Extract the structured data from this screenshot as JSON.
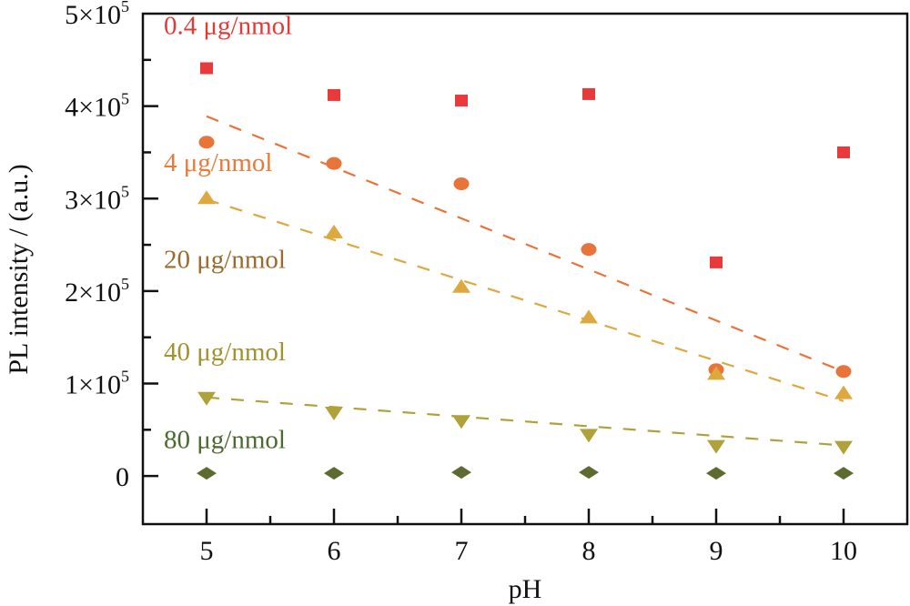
{
  "chart_data": {
    "type": "scatter",
    "title": "",
    "xlabel": "pH",
    "ylabel": "PL intensity / (a.u.)",
    "xlim": [
      4.5,
      10.5
    ],
    "ylim": [
      -0.52,
      5.0
    ],
    "y_unit_multiplier": 100000,
    "grid": false,
    "legend_placement": "inline-left",
    "x_ticks": [
      5,
      6,
      7,
      8,
      9,
      10
    ],
    "x_tick_labels": [
      "5",
      "6",
      "7",
      "8",
      "9",
      "10"
    ],
    "y_ticks": [
      0,
      1,
      2,
      3,
      4,
      5
    ],
    "y_tick_labels": [
      {
        "mant": "0",
        "exp": ""
      },
      {
        "mant": "1×10",
        "exp": "5"
      },
      {
        "mant": "2×10",
        "exp": "5"
      },
      {
        "mant": "3×10",
        "exp": "5"
      },
      {
        "mant": "4×10",
        "exp": "5"
      },
      {
        "mant": "5×10",
        "exp": "5"
      }
    ],
    "x": [
      5,
      6,
      7,
      8,
      9,
      10
    ],
    "series": [
      {
        "name": "0.4 μg/nmol",
        "label": "0.4 μg/nmol",
        "marker": "square",
        "color": "#E83A3A",
        "label_color": "#E23B36",
        "values": [
          4.41,
          4.12,
          4.06,
          4.13,
          2.31,
          3.5
        ],
        "fit_line": null
      },
      {
        "name": "4 μg/nmol",
        "label": "4 μg/nmol",
        "marker": "circle",
        "color": "#E8743A",
        "label_color": "#EA7A3A",
        "values": [
          3.61,
          3.38,
          3.16,
          2.45,
          1.15,
          1.13
        ],
        "fit_line": {
          "x": [
            5,
            10
          ],
          "y": [
            3.89,
            1.13
          ],
          "style": "dashed"
        }
      },
      {
        "name": "20 μg/nmol",
        "label": "20 μg/nmol",
        "marker": "triangle-up",
        "color": "#DDA83E",
        "label_color": "#9C6A2C",
        "values": [
          3.01,
          2.64,
          2.05,
          1.72,
          1.11,
          0.9
        ],
        "fit_line": {
          "x": [
            5,
            10
          ],
          "y": [
            2.99,
            0.81
          ],
          "style": "dashed"
        }
      },
      {
        "name": "40 μg/nmol",
        "label": "40 μg/nmol",
        "marker": "triangle-down",
        "color": "#B0A23A",
        "label_color": "#A0922E",
        "values": [
          0.84,
          0.68,
          0.59,
          0.44,
          0.32,
          0.31
        ],
        "fit_line": {
          "x": [
            5,
            10
          ],
          "y": [
            0.85,
            0.33
          ],
          "style": "dashed"
        }
      },
      {
        "name": "80 μg/nmol",
        "label": "80 μg/nmol",
        "marker": "diamond",
        "color": "#5E6B30",
        "label_color": "#4B6A2E",
        "values": [
          0.03,
          0.03,
          0.04,
          0.04,
          0.03,
          0.03
        ],
        "fit_line": null
      }
    ],
    "series_label_anchor_values": [
      4.78,
      3.3,
      2.25,
      1.25,
      0.3
    ]
  }
}
